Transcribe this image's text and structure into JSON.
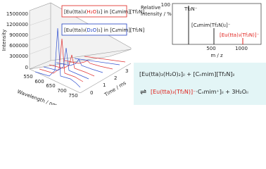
{
  "plot3d": {
    "y_axis_label": "Intensity",
    "yticks": [
      "1500000",
      "1200000",
      "900000",
      "600000",
      "300000",
      "0"
    ],
    "wavelength_label": "Wavelength / nm",
    "wavelength_ticks": [
      "550",
      "600",
      "650",
      "700",
      "750"
    ],
    "time_label": "Time / ms",
    "time_ticks": [
      "0",
      "1",
      "2",
      "3"
    ],
    "legend_h2o": [
      "[Eu(tta)₃(",
      "H₂O",
      ")₂] in [C₄mim][Tf₂N]"
    ],
    "legend_d2o": [
      "[Eu(tta)₃(",
      "D₂O",
      ")₂] in [C₄mim][Tf₂N]"
    ]
  },
  "mass_spectrum": {
    "y_axis_label": [
      "Relative",
      "intensity / %"
    ],
    "ytick": "100",
    "xticks": [
      "500",
      "1000"
    ],
    "x_axis_label": "m / z",
    "peak_labels": [
      "Tf₂N⁻",
      "[C₄mim(Tf₂N)₂]⁻",
      "[Eu(tta)₃(Tf₂N)]⁻"
    ]
  },
  "equation": {
    "line1": "[Eu(tta)₃(H₂O)₂]ᵢₗ + [Cₙmim][Tf₂N]ᵢₗ",
    "arrow": "⇌",
    "line2": [
      "[Eu(tta)₃(Tf₂N)]⁻",
      "·Cₙmim⁺]ᵢₗ + 3H₂Oᵢₗ"
    ]
  }
}
